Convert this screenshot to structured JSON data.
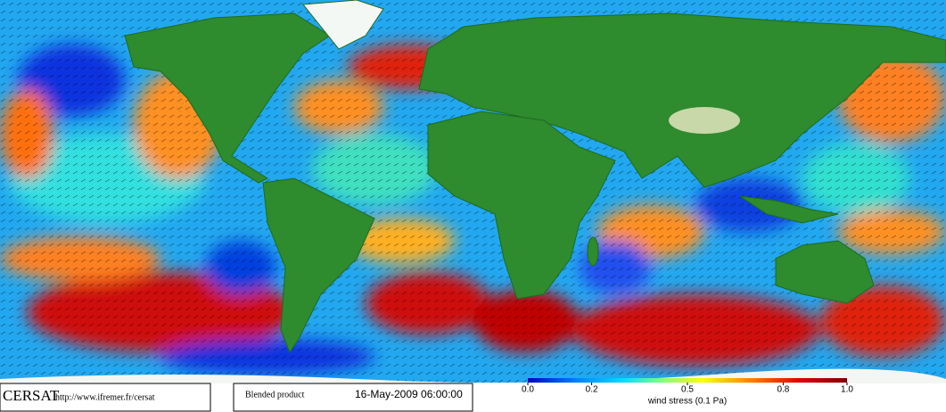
{
  "footer": {
    "logo": "CERSAT",
    "url": "http://www.ifremer.fr/cersat",
    "product": "Blended product",
    "timestamp": "16-May-2009 06:00:00"
  },
  "colorbar": {
    "label": "wind stress (0.1 Pa)",
    "lim": [
      0,
      1
    ],
    "ticks": [
      {
        "value": 0,
        "label": "0.0"
      },
      0.2,
      0.5,
      0.8,
      {
        "value": 1,
        "label": "1.0"
      }
    ]
  }
}
